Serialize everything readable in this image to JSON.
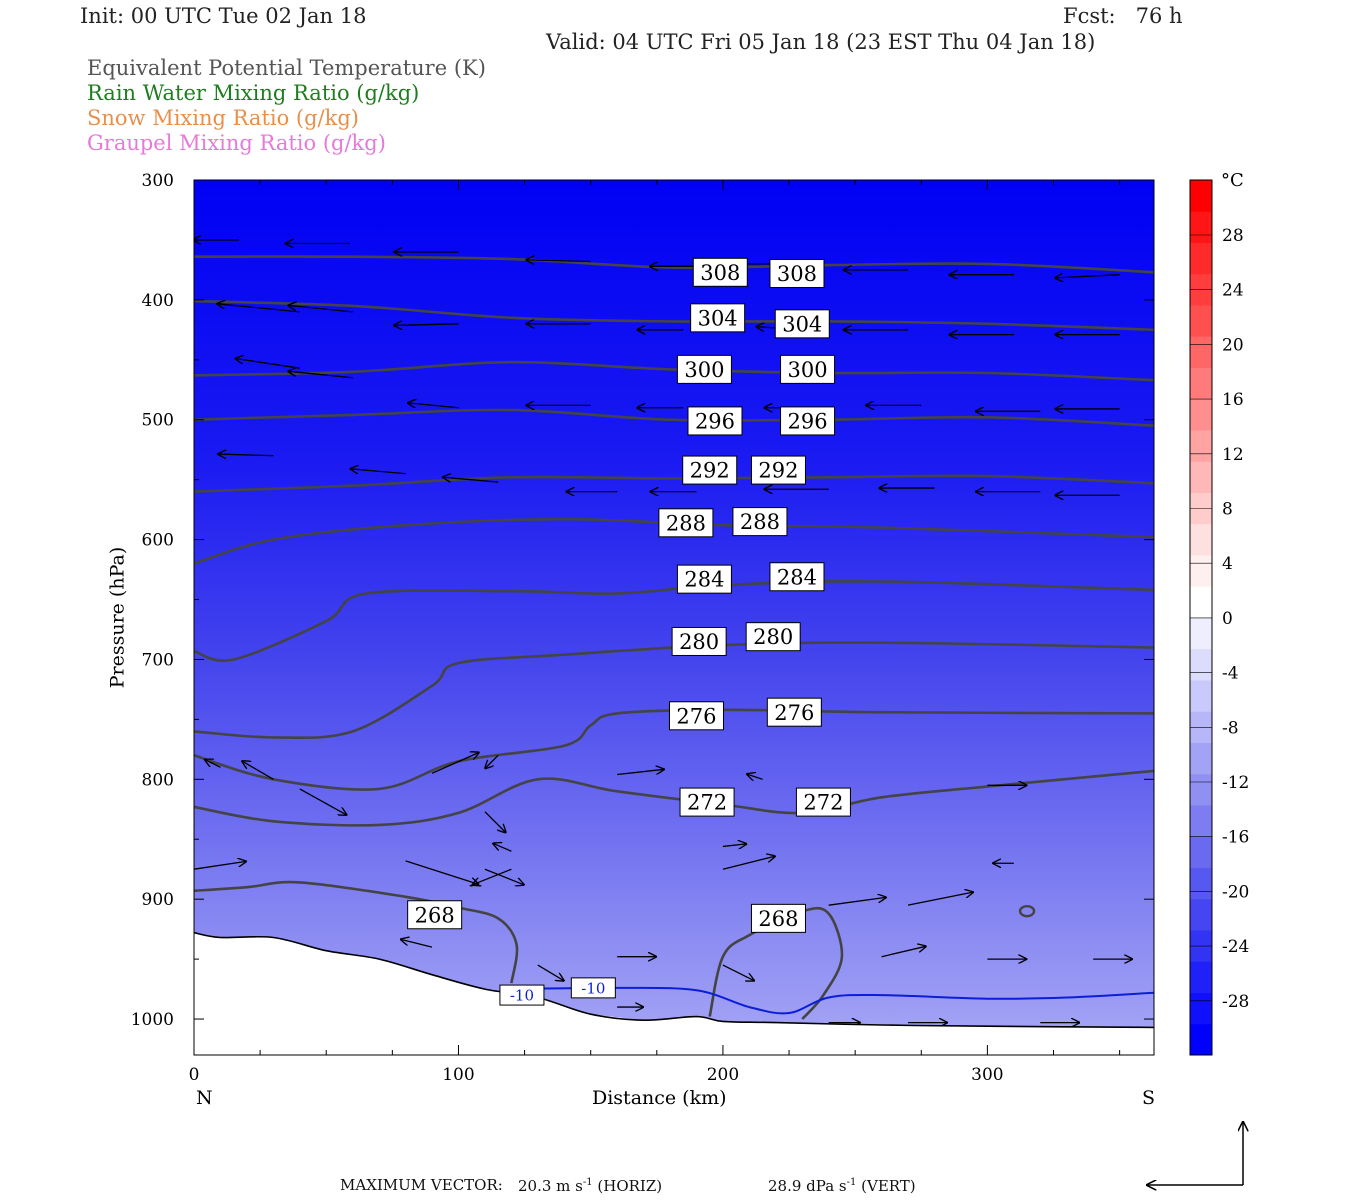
{
  "header": {
    "init": "Init: 00 UTC Tue 02 Jan 18",
    "fcst": "Fcst:   76 h",
    "valid": "Valid: 04 UTC Fri 05 Jan 18 (23 EST Thu 04 Jan 18)"
  },
  "legend": [
    {
      "label": "Equivalent Potential Temperature (K)",
      "color": "#555555"
    },
    {
      "label": "Rain Water Mixing Ratio (g/kg)",
      "color": "#1e7d1e"
    },
    {
      "label": "Snow Mixing Ratio (g/kg)",
      "color": "#e8904a"
    },
    {
      "label": "Graupel Mixing Ratio (g/kg)",
      "color": "#e57ad8"
    }
  ],
  "footer": {
    "max_vector_label": "MAXIMUM VECTOR:",
    "horiz_value": "20.3 m s",
    "horiz_unit": "(HORIZ)",
    "vert_value": "28.9 dPa s",
    "vert_unit": "(VERT)",
    "exponent": "-1"
  },
  "chart_data": {
    "type": "cross-section",
    "xlabel": "Distance (km)",
    "ylabel": "Pressure (hPa)",
    "xlim": [
      0,
      363
    ],
    "ylim": [
      1030,
      300
    ],
    "x_ticks": [
      0,
      100,
      200,
      300
    ],
    "y_ticks": [
      300,
      400,
      500,
      600,
      700,
      800,
      900,
      1000
    ],
    "left_end_label": "N",
    "right_end_label": "S",
    "colorbar": {
      "unit": "°C",
      "tick_labels": [
        "28",
        "24",
        "20",
        "16",
        "12",
        "8",
        "4",
        "0",
        "-4",
        "-8",
        "-12",
        "-16",
        "-20",
        "-24",
        "-28"
      ],
      "colors": [
        "#0000ff",
        "#1010fc",
        "#2020f8",
        "#3333f4",
        "#4545f2",
        "#5757f2",
        "#6a6af0",
        "#7d7df1",
        "#9090f3",
        "#a3a3f6",
        "#b6b6f8",
        "#c9c9fb",
        "#dcdcfd",
        "#eeeeff",
        "#ffffff",
        "#fff0f0",
        "#ffe0e0",
        "#ffcccc",
        "#ffb8b8",
        "#ffa3a3",
        "#ff8f8f",
        "#ff7a7a",
        "#ff6666",
        "#ff5050",
        "#ff3d3d",
        "#ff2a2a",
        "#ff1515",
        "#ff0000"
      ]
    },
    "theta_e_contours": [
      {
        "value": 308,
        "points": [
          [
            0,
            364
          ],
          [
            60,
            364
          ],
          [
            120,
            366
          ],
          [
            180,
            373
          ],
          [
            240,
            371
          ],
          [
            300,
            370
          ],
          [
            363,
            377
          ]
        ]
      },
      {
        "value": 304,
        "points": [
          [
            0,
            401
          ],
          [
            60,
            405
          ],
          [
            120,
            415
          ],
          [
            180,
            418
          ],
          [
            240,
            418
          ],
          [
            300,
            420
          ],
          [
            363,
            425
          ]
        ]
      },
      {
        "value": 300,
        "points": [
          [
            0,
            463
          ],
          [
            60,
            460
          ],
          [
            120,
            452
          ],
          [
            180,
            458
          ],
          [
            240,
            461
          ],
          [
            300,
            461
          ],
          [
            363,
            467
          ]
        ]
      },
      {
        "value": 296,
        "points": [
          [
            0,
            500
          ],
          [
            60,
            496
          ],
          [
            120,
            492
          ],
          [
            180,
            500
          ],
          [
            240,
            500
          ],
          [
            300,
            498
          ],
          [
            363,
            505
          ]
        ]
      },
      {
        "value": 292,
        "points": [
          [
            0,
            560
          ],
          [
            60,
            555
          ],
          [
            120,
            548
          ],
          [
            180,
            549
          ],
          [
            240,
            548
          ],
          [
            300,
            547
          ],
          [
            363,
            553
          ]
        ]
      },
      {
        "value": 288,
        "points": [
          [
            0,
            620
          ],
          [
            30,
            600
          ],
          [
            80,
            588
          ],
          [
            140,
            583
          ],
          [
            200,
            588
          ],
          [
            260,
            590
          ],
          [
            363,
            598
          ]
        ]
      },
      {
        "value": 284,
        "points": [
          [
            0,
            693
          ],
          [
            15,
            700
          ],
          [
            50,
            668
          ],
          [
            65,
            645
          ],
          [
            120,
            643
          ],
          [
            160,
            645
          ],
          [
            200,
            638
          ],
          [
            260,
            635
          ],
          [
            363,
            642
          ]
        ]
      },
      {
        "value": 280,
        "points": [
          [
            0,
            760
          ],
          [
            30,
            765
          ],
          [
            60,
            760
          ],
          [
            90,
            722
          ],
          [
            100,
            703
          ],
          [
            140,
            696
          ],
          [
            200,
            688
          ],
          [
            260,
            686
          ],
          [
            363,
            690
          ]
        ]
      },
      {
        "value": 276,
        "points": [
          [
            0,
            780
          ],
          [
            30,
            800
          ],
          [
            70,
            808
          ],
          [
            100,
            785
          ],
          [
            140,
            772
          ],
          [
            150,
            755
          ],
          [
            160,
            745
          ],
          [
            200,
            742
          ],
          [
            260,
            744
          ],
          [
            363,
            745
          ]
        ]
      },
      {
        "value": 272,
        "points": [
          [
            0,
            823
          ],
          [
            30,
            835
          ],
          [
            70,
            838
          ],
          [
            100,
            828
          ],
          [
            130,
            800
          ],
          [
            160,
            810
          ],
          [
            200,
            821
          ],
          [
            230,
            828
          ],
          [
            260,
            815
          ],
          [
            300,
            806
          ],
          [
            363,
            793
          ]
        ]
      },
      {
        "value": 268,
        "points": [
          [
            0,
            893
          ],
          [
            20,
            890
          ],
          [
            40,
            886
          ],
          [
            80,
            898
          ],
          [
            100,
            907
          ],
          [
            115,
            916
          ],
          [
            122,
            938
          ],
          [
            120,
            970
          ]
        ]
      },
      {
        "value": 268,
        "points": [
          [
            195,
            998
          ],
          [
            200,
            948
          ],
          [
            210,
            930
          ],
          [
            230,
            910
          ],
          [
            240,
            912
          ],
          [
            245,
            948
          ],
          [
            238,
            980
          ],
          [
            230,
            1000
          ]
        ]
      }
    ],
    "theta_e_labels": [
      {
        "value": "308",
        "x": 199,
        "p": 377
      },
      {
        "value": "308",
        "x": 228,
        "p": 378
      },
      {
        "value": "304",
        "x": 198,
        "p": 415
      },
      {
        "value": "304",
        "x": 230,
        "p": 420
      },
      {
        "value": "300",
        "x": 193,
        "p": 458
      },
      {
        "value": "300",
        "x": 232,
        "p": 458
      },
      {
        "value": "296",
        "x": 197,
        "p": 501
      },
      {
        "value": "296",
        "x": 232,
        "p": 501
      },
      {
        "value": "292",
        "x": 195,
        "p": 542
      },
      {
        "value": "292",
        "x": 221,
        "p": 542
      },
      {
        "value": "288",
        "x": 186,
        "p": 586
      },
      {
        "value": "288",
        "x": 214,
        "p": 585
      },
      {
        "value": "284",
        "x": 193,
        "p": 633
      },
      {
        "value": "284",
        "x": 228,
        "p": 631
      },
      {
        "value": "280",
        "x": 191,
        "p": 685
      },
      {
        "value": "280",
        "x": 219,
        "p": 681
      },
      {
        "value": "276",
        "x": 190,
        "p": 747
      },
      {
        "value": "276",
        "x": 227,
        "p": 744
      },
      {
        "value": "272",
        "x": 194,
        "p": 819
      },
      {
        "value": "272",
        "x": 238,
        "p": 819
      },
      {
        "value": "268",
        "x": 91,
        "p": 913
      },
      {
        "value": "268",
        "x": 221,
        "p": 916
      }
    ],
    "minus10_isotherm": {
      "value": "-10",
      "points": [
        [
          120,
          975
        ],
        [
          160,
          974
        ],
        [
          190,
          976
        ],
        [
          210,
          990
        ],
        [
          225,
          995
        ],
        [
          240,
          982
        ],
        [
          260,
          980
        ],
        [
          300,
          983
        ],
        [
          330,
          982
        ],
        [
          363,
          978
        ]
      ]
    },
    "isotherm_labels": [
      {
        "value": "-10",
        "x": 124,
        "p": 980
      },
      {
        "value": "-10",
        "x": 151,
        "p": 974
      }
    ],
    "terrain_pressure": [
      [
        0,
        928
      ],
      [
        10,
        932
      ],
      [
        30,
        932
      ],
      [
        50,
        943
      ],
      [
        70,
        950
      ],
      [
        90,
        963
      ],
      [
        110,
        975
      ],
      [
        130,
        982
      ],
      [
        150,
        996
      ],
      [
        170,
        1001
      ],
      [
        190,
        998
      ],
      [
        200,
        1002
      ],
      [
        220,
        1003
      ],
      [
        260,
        1005
      ],
      [
        300,
        1006
      ],
      [
        363,
        1007
      ]
    ],
    "wind_vectors": [
      [
        17,
        350,
        -10,
        0
      ],
      [
        59,
        353,
        -14,
        0
      ],
      [
        100,
        360,
        -14,
        0
      ],
      [
        150,
        368,
        -14,
        -1
      ],
      [
        195,
        372,
        -13,
        0
      ],
      [
        230,
        370,
        -14,
        0
      ],
      [
        270,
        375,
        -14,
        0
      ],
      [
        310,
        379,
        -14,
        0
      ],
      [
        350,
        379,
        -14,
        2
      ],
      [
        40,
        410,
        -18,
        -5
      ],
      [
        60,
        410,
        -14,
        -4
      ],
      [
        100,
        420,
        -14,
        1
      ],
      [
        150,
        420,
        -14,
        0
      ],
      [
        185,
        425,
        -10,
        0
      ],
      [
        230,
        425,
        -10,
        -2
      ],
      [
        270,
        425,
        -14,
        0
      ],
      [
        310,
        429,
        -14,
        0
      ],
      [
        350,
        429,
        -14,
        0
      ],
      [
        40,
        457,
        -14,
        -6
      ],
      [
        60,
        465,
        -14,
        -4
      ],
      [
        100,
        490,
        -11,
        -3
      ],
      [
        150,
        488,
        -14,
        0
      ],
      [
        185,
        490,
        -10,
        0
      ],
      [
        240,
        490,
        -14,
        0
      ],
      [
        275,
        488,
        -12,
        0
      ],
      [
        320,
        493,
        -14,
        0
      ],
      [
        350,
        491,
        -14,
        0
      ],
      [
        30,
        530,
        -12,
        -1
      ],
      [
        80,
        545,
        -12,
        -3
      ],
      [
        115,
        552,
        -12,
        -3
      ],
      [
        160,
        560,
        -11,
        0
      ],
      [
        190,
        560,
        -10,
        0
      ],
      [
        240,
        558,
        -14,
        0
      ],
      [
        280,
        557,
        -12,
        0
      ],
      [
        320,
        560,
        -14,
        0
      ],
      [
        350,
        563,
        -14,
        0
      ]
    ],
    "max_vector_horiz": "20.3",
    "max_vector_vert": "28.9"
  }
}
